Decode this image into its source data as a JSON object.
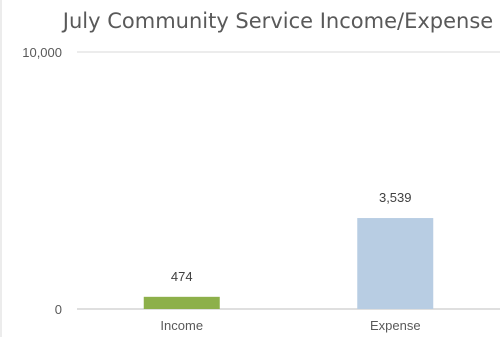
{
  "chart_data": {
    "type": "bar",
    "title": "July Community Service Income/Expense",
    "categories": [
      "Income",
      "Expense"
    ],
    "values": [
      474,
      3539
    ],
    "data_labels": [
      "474",
      "3,539"
    ],
    "xlabel": "",
    "ylabel": "",
    "ylim": [
      0,
      10000
    ],
    "yticks": [
      0,
      10000
    ],
    "ytick_labels": [
      "0",
      "10,000"
    ],
    "bar_colors": [
      "#8db04a",
      "#b8cde3"
    ],
    "grid": true,
    "legend": "none"
  }
}
